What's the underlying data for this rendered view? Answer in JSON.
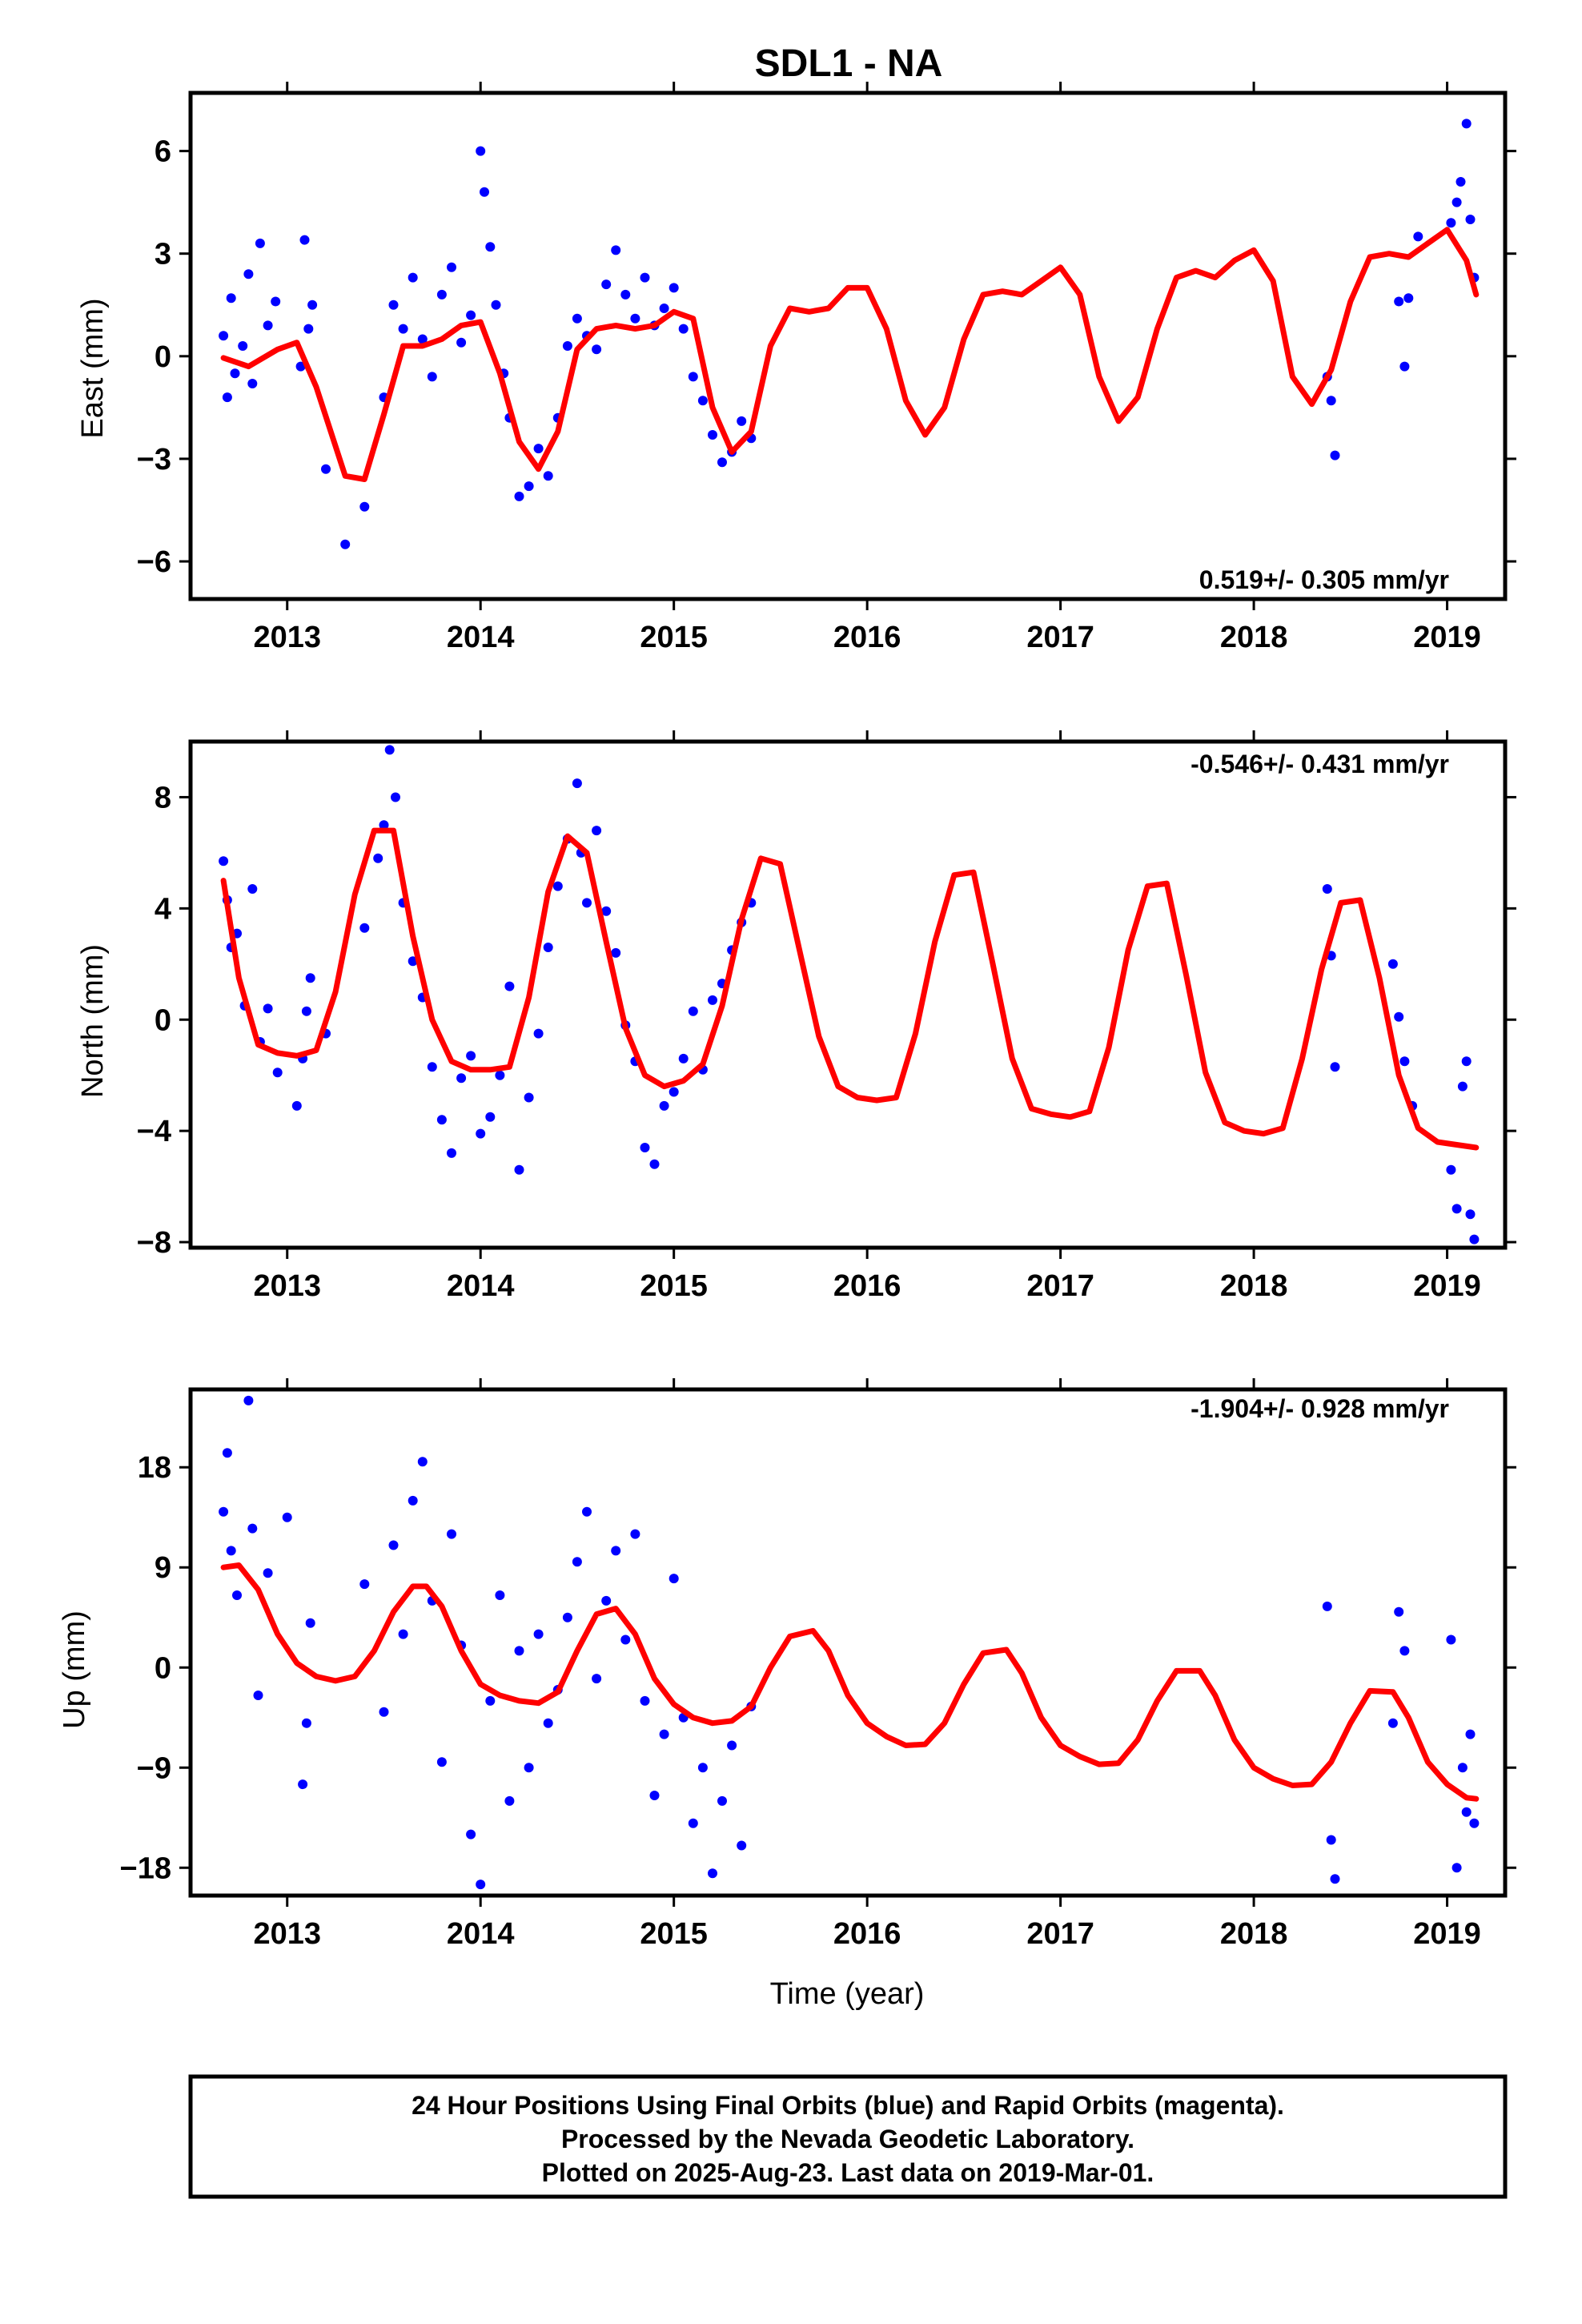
{
  "title": "SDL1 - NA",
  "colors": {
    "points": "#0000ff",
    "model": "#ff0000",
    "axes": "#000000"
  },
  "x_label": "Time (year)",
  "x_range": [
    2012.5,
    2019.3
  ],
  "x_ticks": [
    2013,
    2014,
    2015,
    2016,
    2017,
    2018,
    2019
  ],
  "footer": {
    "line1": "24 Hour Positions Using Final Orbits (blue) and Rapid Orbits (magenta).",
    "line2": "Processed by the Nevada Geodetic Laboratory.",
    "line3": "Plotted on 2025-Aug-23. Last data on 2019-Mar-01."
  },
  "chart_data": [
    {
      "type": "scatter",
      "ylabel": "East (mm)",
      "rate": "0.519+/- 0.305 mm/yr",
      "rate_position": "bottom-right",
      "ylim": [
        -7.1,
        7.7
      ],
      "yticks": [
        -6,
        -3,
        0,
        3,
        6
      ],
      "xlim": [
        2012.5,
        2019.3
      ],
      "series": [
        {
          "kind": "points",
          "x": [
            2012.67,
            2012.69,
            2012.71,
            2012.73,
            2012.77,
            2012.8,
            2012.82,
            2012.86,
            2012.9,
            2012.94,
            2013.07,
            2013.09,
            2013.11,
            2013.13,
            2013.2,
            2013.3,
            2013.4,
            2013.5,
            2013.55,
            2013.6,
            2013.65,
            2013.7,
            2013.75,
            2013.8,
            2013.85,
            2013.9,
            2013.95,
            2014.0,
            2014.02,
            2014.05,
            2014.08,
            2014.12,
            2014.15,
            2014.2,
            2014.25,
            2014.3,
            2014.35,
            2014.4,
            2014.45,
            2014.5,
            2014.55,
            2014.6,
            2014.65,
            2014.7,
            2014.75,
            2014.8,
            2014.85,
            2014.9,
            2014.95,
            2015.0,
            2015.05,
            2015.1,
            2015.15,
            2015.2,
            2015.25,
            2015.3,
            2015.35,
            2015.4,
            2018.38,
            2018.4,
            2018.42,
            2018.75,
            2018.78,
            2018.8,
            2018.85,
            2019.02,
            2019.05,
            2019.07,
            2019.1,
            2019.12,
            2019.14
          ],
          "y": [
            0.6,
            -1.2,
            1.7,
            -0.5,
            0.3,
            2.4,
            -0.8,
            3.3,
            0.9,
            1.6,
            -0.3,
            3.4,
            0.8,
            1.5,
            -3.3,
            -5.5,
            -4.4,
            -1.2,
            1.5,
            0.8,
            2.3,
            0.5,
            -0.6,
            1.8,
            2.6,
            0.4,
            1.2,
            6.0,
            4.8,
            3.2,
            1.5,
            -0.5,
            -1.8,
            -4.1,
            -3.8,
            -2.7,
            -3.5,
            -1.8,
            0.3,
            1.1,
            0.6,
            0.2,
            2.1,
            3.1,
            1.8,
            1.1,
            2.3,
            0.9,
            1.4,
            2.0,
            0.8,
            -0.6,
            -1.3,
            -2.3,
            -3.1,
            -2.8,
            -1.9,
            -2.4,
            -0.6,
            -1.3,
            -2.9,
            1.6,
            -0.3,
            1.7,
            3.5,
            3.9,
            4.5,
            5.1,
            6.8,
            4.0,
            2.3
          ]
        },
        {
          "kind": "model",
          "x": [
            2012.67,
            2012.8,
            2012.95,
            2013.05,
            2013.15,
            2013.3,
            2013.4,
            2013.5,
            2013.6,
            2013.7,
            2013.8,
            2013.9,
            2014.0,
            2014.1,
            2014.2,
            2014.3,
            2014.4,
            2014.5,
            2014.6,
            2014.7,
            2014.8,
            2014.9,
            2015.0,
            2015.1,
            2015.2,
            2015.3,
            2015.4,
            2015.5,
            2015.6,
            2015.7,
            2015.8,
            2015.9,
            2016.0,
            2016.1,
            2016.2,
            2016.3,
            2016.4,
            2016.5,
            2016.6,
            2016.7,
            2016.8,
            2016.9,
            2017.0,
            2017.1,
            2017.2,
            2017.3,
            2017.4,
            2017.5,
            2017.6,
            2017.7,
            2017.8,
            2017.9,
            2018.0,
            2018.1,
            2018.2,
            2018.3,
            2018.4,
            2018.5,
            2018.6,
            2018.7,
            2018.8,
            2018.9,
            2019.0,
            2019.1,
            2019.15
          ],
          "y": [
            -0.05,
            -0.3,
            0.2,
            0.4,
            -0.9,
            -3.5,
            -3.6,
            -1.7,
            0.3,
            0.3,
            0.5,
            0.9,
            1.0,
            -0.5,
            -2.5,
            -3.3,
            -2.2,
            0.2,
            0.8,
            0.9,
            0.8,
            0.9,
            1.3,
            1.1,
            -1.5,
            -2.8,
            -2.2,
            0.3,
            1.4,
            1.3,
            1.4,
            2.0,
            2.0,
            0.8,
            -1.3,
            -2.3,
            -1.5,
            0.5,
            1.8,
            1.9,
            1.8,
            2.2,
            2.6,
            1.8,
            -0.6,
            -1.9,
            -1.2,
            0.8,
            2.3,
            2.5,
            2.3,
            2.8,
            3.1,
            2.2,
            -0.6,
            -1.4,
            -0.4,
            1.6,
            2.9,
            3.0,
            2.9,
            3.3,
            3.7,
            2.8,
            1.8
          ]
        }
      ]
    },
    {
      "type": "scatter",
      "ylabel": "North (mm)",
      "rate": "-0.546+/- 0.431 mm/yr",
      "rate_position": "top-right",
      "ylim": [
        -8.2,
        10.0
      ],
      "yticks": [
        -8,
        -4,
        0,
        4,
        8
      ],
      "xlim": [
        2012.5,
        2019.3
      ],
      "series": [
        {
          "kind": "points",
          "x": [
            2012.67,
            2012.69,
            2012.71,
            2012.74,
            2012.78,
            2012.82,
            2012.86,
            2012.9,
            2012.95,
            2013.05,
            2013.08,
            2013.1,
            2013.12,
            2013.2,
            2013.4,
            2013.47,
            2013.5,
            2013.53,
            2013.56,
            2013.6,
            2013.65,
            2013.7,
            2013.75,
            2013.8,
            2013.85,
            2013.9,
            2013.95,
            2014.0,
            2014.05,
            2014.1,
            2014.15,
            2014.2,
            2014.25,
            2014.3,
            2014.35,
            2014.4,
            2014.45,
            2014.5,
            2014.52,
            2014.55,
            2014.6,
            2014.65,
            2014.7,
            2014.75,
            2014.8,
            2014.85,
            2014.9,
            2014.95,
            2015.0,
            2015.05,
            2015.1,
            2015.15,
            2015.2,
            2015.25,
            2015.3,
            2015.35,
            2015.4,
            2018.38,
            2018.4,
            2018.42,
            2018.72,
            2018.75,
            2018.78,
            2018.82,
            2019.02,
            2019.05,
            2019.08,
            2019.1,
            2019.12,
            2019.14
          ],
          "y": [
            5.7,
            4.3,
            2.6,
            3.1,
            0.5,
            4.7,
            -0.8,
            0.4,
            -1.9,
            -3.1,
            -1.4,
            0.3,
            1.5,
            -0.5,
            3.3,
            5.8,
            7.0,
            9.7,
            8.0,
            4.2,
            2.1,
            0.8,
            -1.7,
            -3.6,
            -4.8,
            -2.1,
            -1.3,
            -4.1,
            -3.5,
            -2.0,
            1.2,
            -5.4,
            -2.8,
            -0.5,
            2.6,
            4.8,
            6.5,
            8.5,
            6.0,
            4.2,
            6.8,
            3.9,
            2.4,
            -0.2,
            -1.5,
            -4.6,
            -5.2,
            -3.1,
            -2.6,
            -1.4,
            0.3,
            -1.8,
            0.7,
            1.3,
            2.5,
            3.5,
            4.2,
            4.7,
            2.3,
            -1.7,
            2.0,
            0.1,
            -1.5,
            -3.1,
            -5.4,
            -6.8,
            -2.4,
            -1.5,
            -7.0,
            -7.9
          ],
          "note": "sampled"
        },
        {
          "kind": "model",
          "x": [
            2012.67,
            2012.75,
            2012.85,
            2012.95,
            2013.05,
            2013.15,
            2013.25,
            2013.35,
            2013.45,
            2013.55,
            2013.65,
            2013.75,
            2013.85,
            2013.95,
            2014.05,
            2014.15,
            2014.25,
            2014.35,
            2014.45,
            2014.55,
            2014.65,
            2014.75,
            2014.85,
            2014.95,
            2015.05,
            2015.15,
            2015.25,
            2015.35,
            2015.45,
            2015.55,
            2015.65,
            2015.75,
            2015.85,
            2015.95,
            2016.05,
            2016.15,
            2016.25,
            2016.35,
            2016.45,
            2016.55,
            2016.65,
            2016.75,
            2016.85,
            2016.95,
            2017.05,
            2017.15,
            2017.25,
            2017.35,
            2017.45,
            2017.55,
            2017.65,
            2017.75,
            2017.85,
            2017.95,
            2018.05,
            2018.15,
            2018.25,
            2018.35,
            2018.45,
            2018.55,
            2018.65,
            2018.75,
            2018.85,
            2018.95,
            2019.05,
            2019.15
          ],
          "y": [
            5.0,
            1.5,
            -0.9,
            -1.2,
            -1.3,
            -1.1,
            1.0,
            4.5,
            6.8,
            6.8,
            3.0,
            0.0,
            -1.5,
            -1.8,
            -1.8,
            -1.7,
            0.8,
            4.6,
            6.6,
            6.0,
            2.8,
            -0.3,
            -2.0,
            -2.4,
            -2.2,
            -1.6,
            0.5,
            3.6,
            5.8,
            5.6,
            2.5,
            -0.6,
            -2.4,
            -2.8,
            -2.9,
            -2.8,
            -0.5,
            2.8,
            5.2,
            5.3,
            2.0,
            -1.4,
            -3.2,
            -3.4,
            -3.5,
            -3.3,
            -1.0,
            2.5,
            4.8,
            4.9,
            1.6,
            -1.9,
            -3.7,
            -4.0,
            -4.1,
            -3.9,
            -1.4,
            1.8,
            4.2,
            4.3,
            1.5,
            -2.0,
            -3.9,
            -4.4,
            -4.5,
            -4.6
          ]
        }
      ]
    },
    {
      "type": "scatter",
      "ylabel": "Up (mm)",
      "rate": "-1.904+/- 0.928 mm/yr",
      "rate_position": "top-right",
      "ylim": [
        -20.5,
        25.0
      ],
      "yticks": [
        -18,
        -9,
        0,
        9,
        18
      ],
      "xlim": [
        2012.5,
        2019.3
      ],
      "series": [
        {
          "kind": "points",
          "x": [
            2012.67,
            2012.69,
            2012.71,
            2012.74,
            2012.8,
            2012.82,
            2012.85,
            2012.9,
            2013.0,
            2013.08,
            2013.1,
            2013.12,
            2013.4,
            2013.5,
            2013.55,
            2013.6,
            2013.65,
            2013.7,
            2013.75,
            2013.8,
            2013.85,
            2013.9,
            2013.95,
            2014.0,
            2014.05,
            2014.1,
            2014.15,
            2014.2,
            2014.25,
            2014.3,
            2014.35,
            2014.4,
            2014.45,
            2014.5,
            2014.55,
            2014.6,
            2014.65,
            2014.7,
            2014.75,
            2014.8,
            2014.85,
            2014.9,
            2014.95,
            2015.0,
            2015.05,
            2015.1,
            2015.15,
            2015.2,
            2015.25,
            2015.3,
            2015.35,
            2015.4,
            2018.38,
            2018.4,
            2018.42,
            2018.72,
            2018.75,
            2018.78,
            2019.02,
            2019.05,
            2019.08,
            2019.1,
            2019.12,
            2019.14
          ],
          "y": [
            14.0,
            19.3,
            10.5,
            6.5,
            24.0,
            12.5,
            -2.5,
            8.5,
            13.5,
            -10.5,
            -5.0,
            4.0,
            7.5,
            -4.0,
            11.0,
            3.0,
            15.0,
            18.5,
            6.0,
            -8.5,
            12.0,
            2.0,
            -15.0,
            -19.5,
            -3.0,
            6.5,
            -12.0,
            1.5,
            -9.0,
            3.0,
            -5.0,
            -2.0,
            4.5,
            9.5,
            14.0,
            -1.0,
            6.0,
            10.5,
            2.5,
            12.0,
            -3.0,
            -11.5,
            -6.0,
            8.0,
            -4.5,
            -14.0,
            -9.0,
            -18.5,
            -12.0,
            -7.0,
            -16.0,
            -3.5,
            5.5,
            -15.5,
            -19.0,
            -5.0,
            5.0,
            1.5,
            2.5,
            -18.0,
            -9.0,
            -13.0,
            -6.0,
            -14.0
          ]
        },
        {
          "kind": "model",
          "x": [
            2012.67,
            2012.75,
            2012.85,
            2012.95,
            2013.05,
            2013.15,
            2013.25,
            2013.35,
            2013.45,
            2013.55,
            2013.65,
            2013.72,
            2013.8,
            2013.9,
            2014.0,
            2014.1,
            2014.2,
            2014.3,
            2014.4,
            2014.5,
            2014.6,
            2014.7,
            2014.8,
            2014.9,
            2015.0,
            2015.1,
            2015.2,
            2015.3,
            2015.4,
            2015.5,
            2015.6,
            2015.72,
            2015.8,
            2015.9,
            2016.0,
            2016.1,
            2016.2,
            2016.3,
            2016.4,
            2016.5,
            2016.6,
            2016.72,
            2016.8,
            2016.9,
            2017.0,
            2017.1,
            2017.2,
            2017.3,
            2017.4,
            2017.5,
            2017.6,
            2017.72,
            2017.8,
            2017.9,
            2018.0,
            2018.1,
            2018.2,
            2018.3,
            2018.4,
            2018.5,
            2018.6,
            2018.72,
            2018.8,
            2018.9,
            2019.0,
            2019.1,
            2019.15
          ],
          "y": [
            9.0,
            9.2,
            7.0,
            3.0,
            0.4,
            -0.8,
            -1.2,
            -0.8,
            1.5,
            5.0,
            7.3,
            7.3,
            5.5,
            1.5,
            -1.5,
            -2.5,
            -3.0,
            -3.2,
            -2.2,
            1.5,
            4.8,
            5.3,
            3.0,
            -1.0,
            -3.3,
            -4.5,
            -5.0,
            -4.8,
            -3.5,
            0.0,
            2.8,
            3.3,
            1.5,
            -2.5,
            -5.0,
            -6.2,
            -7.0,
            -6.9,
            -5.0,
            -1.5,
            1.3,
            1.6,
            -0.5,
            -4.5,
            -7.0,
            -8.0,
            -8.7,
            -8.6,
            -6.5,
            -3.0,
            -0.3,
            -0.3,
            -2.5,
            -6.5,
            -9.0,
            -10.0,
            -10.6,
            -10.5,
            -8.5,
            -5.0,
            -2.1,
            -2.2,
            -4.5,
            -8.5,
            -10.5,
            -11.7,
            -11.8
          ]
        }
      ]
    }
  ]
}
